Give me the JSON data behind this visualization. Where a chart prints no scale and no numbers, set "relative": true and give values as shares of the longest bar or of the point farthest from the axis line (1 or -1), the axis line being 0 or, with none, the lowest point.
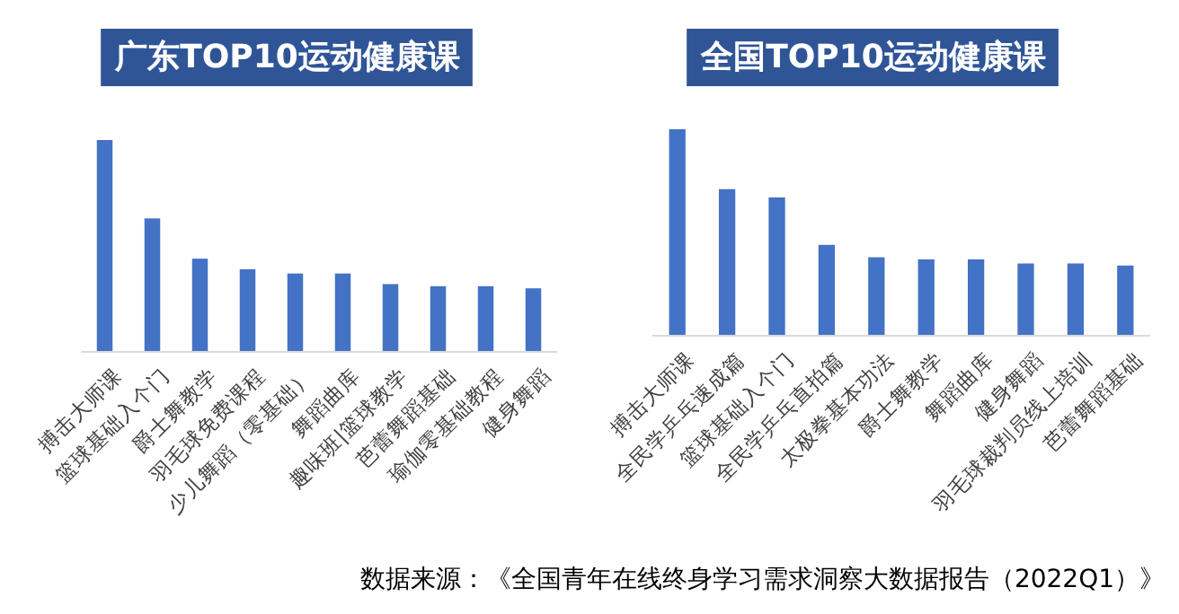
{
  "chart_data": [
    {
      "type": "bar",
      "title": "广东TOP10运动健康课",
      "relative": true,
      "categories": [
        "搏击大师课",
        "篮球基础入个门",
        "爵士舞教学",
        "羽毛球免费课程",
        "少儿舞蹈（零基础）",
        "舞蹈曲库",
        "趣味班|篮球教学",
        "芭蕾舞蹈基础",
        "瑜伽零基础教程",
        "健身舞蹈"
      ],
      "values": [
        1,
        0.63,
        0.44,
        0.39,
        0.37,
        0.37,
        0.32,
        0.31,
        0.31,
        0.3
      ],
      "color": "#4472c4",
      "annotations": [
        "数据来源：《全国青年在线终身学习需求洞察大数据报告（2022Q1）》"
      ]
    },
    {
      "type": "bar",
      "title": "全国TOP10运动健康课",
      "relative": true,
      "categories": [
        "搏击大师课",
        "全民学乒乓速成篇",
        "篮球基础入个门",
        "全民学乒乓直拍篇",
        "太极拳基本功法",
        "爵士舞教学",
        "舞蹈曲库",
        "健身舞蹈",
        "羽毛球裁判员线上培训",
        "芭蕾舞蹈基础"
      ],
      "values": [
        1,
        0.71,
        0.67,
        0.44,
        0.38,
        0.37,
        0.37,
        0.35,
        0.35,
        0.34
      ],
      "color": "#4472c4"
    }
  ]
}
